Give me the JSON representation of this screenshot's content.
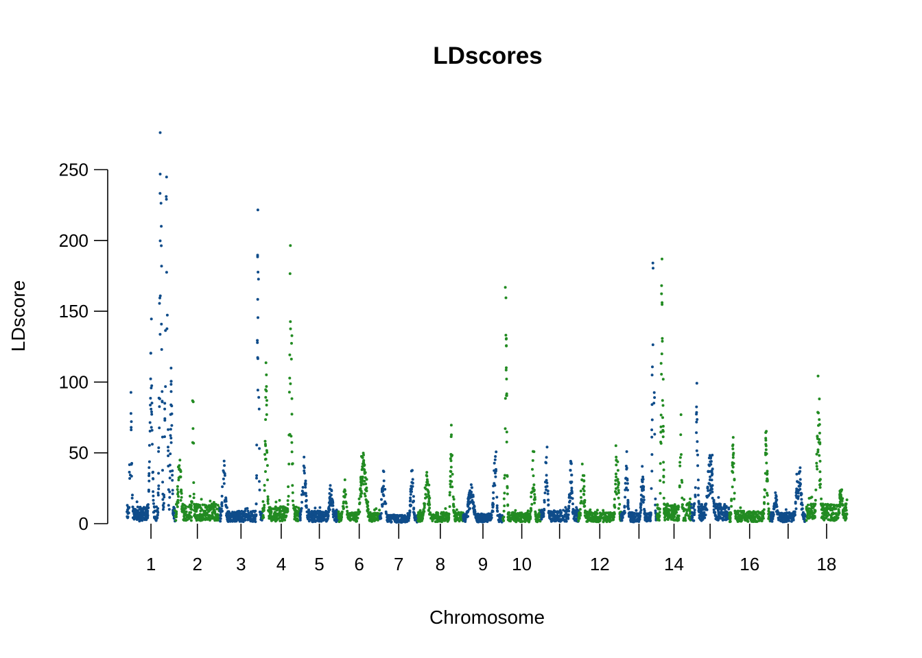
{
  "chart_data": {
    "type": "scatter",
    "subtype": "manhattan",
    "title": "LDscores",
    "xlabel": "Chromosome",
    "ylabel": "LDscore",
    "ylim": [
      0,
      295
    ],
    "y_ticks": [
      0,
      50,
      100,
      150,
      200,
      250
    ],
    "x_tick_labels": [
      "1",
      "2",
      "3",
      "4",
      "5",
      "6",
      "7",
      "8",
      "9",
      "10",
      "12",
      "14",
      "16",
      "18"
    ],
    "colors": {
      "odd_chromosome": "#0f4c8a",
      "even_chromosome": "#228b22"
    },
    "legend": "none",
    "grid": false,
    "chromosomes": [
      {
        "chr": 1,
        "label": "1",
        "peaks": [
          {
            "pos": 0.08,
            "max": 86,
            "width": 0.05
          },
          {
            "pos": 0.5,
            "max": 122,
            "width": 0.06
          },
          {
            "pos": 0.7,
            "max": 294,
            "width": 0.05
          },
          {
            "pos": 0.82,
            "max": 253,
            "width": 0.05
          },
          {
            "pos": 0.92,
            "max": 115,
            "width": 0.04
          }
        ],
        "base": 12
      },
      {
        "chr": 2,
        "label": "2",
        "peaks": [
          {
            "pos": 0.1,
            "max": 53,
            "width": 0.08
          },
          {
            "pos": 0.4,
            "max": 108,
            "width": 0.03
          }
        ],
        "base": 14
      },
      {
        "chr": 3,
        "label": "3",
        "peaks": [
          {
            "pos": 0.1,
            "max": 45,
            "width": 0.08
          },
          {
            "pos": 0.9,
            "max": 253,
            "width": 0.04
          }
        ],
        "base": 9
      },
      {
        "chr": 4,
        "label": "4",
        "peaks": [
          {
            "pos": 0.1,
            "max": 110,
            "width": 0.06
          },
          {
            "pos": 0.75,
            "max": 152,
            "width": 0.08
          }
        ],
        "base": 12
      },
      {
        "chr": 5,
        "label": "5",
        "peaks": [
          {
            "pos": 0.1,
            "max": 49,
            "width": 0.1
          },
          {
            "pos": 0.8,
            "max": 29,
            "width": 0.1
          }
        ],
        "base": 9
      },
      {
        "chr": 6,
        "label": "6",
        "peaks": [
          {
            "pos": 0.15,
            "max": 25,
            "width": 0.1
          },
          {
            "pos": 0.6,
            "max": 51,
            "width": 0.15
          }
        ],
        "base": 8
      },
      {
        "chr": 7,
        "label": "7",
        "peaks": [
          {
            "pos": 0.1,
            "max": 38,
            "width": 0.1
          },
          {
            "pos": 0.85,
            "max": 40,
            "width": 0.08
          }
        ],
        "base": 6
      },
      {
        "chr": 8,
        "label": "8",
        "peaks": [
          {
            "pos": 0.2,
            "max": 37,
            "width": 0.1
          },
          {
            "pos": 0.75,
            "max": 71,
            "width": 0.06
          }
        ],
        "base": 8
      },
      {
        "chr": 9,
        "label": "9",
        "peaks": [
          {
            "pos": 0.2,
            "max": 28,
            "width": 0.15
          },
          {
            "pos": 0.8,
            "max": 54,
            "width": 0.08
          }
        ],
        "base": 7
      },
      {
        "chr": 10,
        "label": "10",
        "peaks": [
          {
            "pos": 0.08,
            "max": 165,
            "width": 0.05
          },
          {
            "pos": 0.8,
            "max": 46,
            "width": 0.08
          }
        ],
        "base": 8
      },
      {
        "chr": 11,
        "label": "",
        "peaks": [
          {
            "pos": 0.15,
            "max": 51,
            "width": 0.08
          },
          {
            "pos": 0.8,
            "max": 45,
            "width": 0.08
          }
        ],
        "base": 10
      },
      {
        "chr": 12,
        "label": "12",
        "peaks": [
          {
            "pos": 0.1,
            "max": 44,
            "width": 0.08
          },
          {
            "pos": 0.9,
            "max": 53,
            "width": 0.08
          }
        ],
        "base": 8
      },
      {
        "chr": 13,
        "label": "",
        "peaks": [
          {
            "pos": 0.15,
            "max": 43,
            "width": 0.08
          },
          {
            "pos": 0.6,
            "max": 36,
            "width": 0.08
          },
          {
            "pos": 0.9,
            "max": 212,
            "width": 0.06
          }
        ],
        "base": 8
      },
      {
        "chr": 14,
        "label": "14",
        "peaks": [
          {
            "pos": 0.15,
            "max": 191,
            "width": 0.06
          },
          {
            "pos": 0.7,
            "max": 78,
            "width": 0.06
          }
        ],
        "base": 14
      },
      {
        "chr": 15,
        "label": "",
        "peaks": [
          {
            "pos": 0.15,
            "max": 92,
            "width": 0.06
          },
          {
            "pos": 0.5,
            "max": 50,
            "width": 0.15
          }
        ],
        "base": 14
      },
      {
        "chr": 16,
        "label": "16",
        "peaks": [
          {
            "pos": 0.1,
            "max": 63,
            "width": 0.06
          },
          {
            "pos": 0.9,
            "max": 69,
            "width": 0.06
          }
        ],
        "base": 9
      },
      {
        "chr": 17,
        "label": "",
        "peaks": [
          {
            "pos": 0.15,
            "max": 22,
            "width": 0.1
          },
          {
            "pos": 0.8,
            "max": 40,
            "width": 0.15
          }
        ],
        "base": 8
      },
      {
        "chr": 18,
        "label": "18",
        "peaks": [
          {
            "pos": 0.3,
            "max": 113,
            "width": 0.08
          },
          {
            "pos": 0.85,
            "max": 30,
            "width": 0.08
          }
        ],
        "base": 14
      }
    ]
  }
}
